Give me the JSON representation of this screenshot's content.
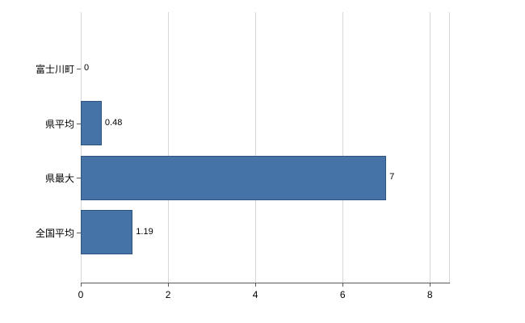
{
  "chart_data": {
    "type": "bar",
    "orientation": "horizontal",
    "title": "",
    "xlabel": "",
    "ylabel": "",
    "categories": [
      "富士川町",
      "県平均",
      "県最大",
      "全国平均"
    ],
    "values": [
      0,
      0.48,
      7,
      1.19
    ],
    "value_labels": [
      "0",
      "0.48",
      "7",
      "1.19"
    ],
    "xlim": [
      0,
      8.44
    ],
    "xticks": [
      0,
      2,
      4,
      6,
      8
    ],
    "xtick_labels": [
      "0",
      "2",
      "4",
      "6",
      "8"
    ],
    "grid": true,
    "legend": false,
    "colors": {
      "bar_fill": "#4573A7",
      "bar_border": "#2F5380",
      "gridline": "#D8D8D8",
      "axis": "#595959",
      "text": "#000000",
      "background": "#FFFFFF"
    }
  }
}
